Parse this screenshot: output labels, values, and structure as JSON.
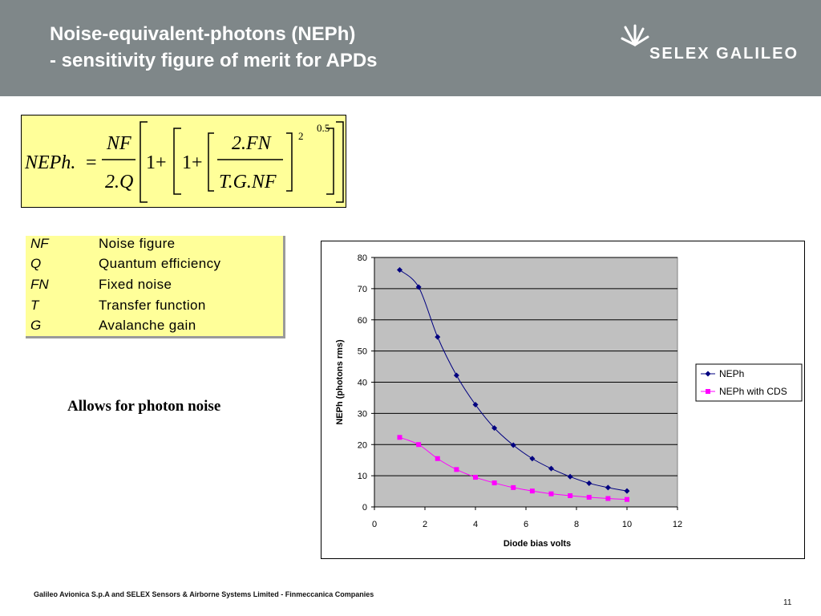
{
  "header": {
    "title_line1": "Noise-equivalent-photons (NEPh)",
    "title_line2": "- sensitivity figure of merit for APDs",
    "logo_text": "SELEX GALILEO",
    "background": "#7f8789"
  },
  "formula": {
    "lhs": "NEPh.",
    "eq": "=",
    "nf": "NF",
    "twoq": "2.Q",
    "one_a": "1+",
    "one_b": "1+",
    "twofn": "2.FN",
    "tgnf": "T.G.NF",
    "exp_inner": "2",
    "exp_outer": "0.5",
    "background": "#ffff99"
  },
  "definitions": [
    {
      "symbol": "NF",
      "text": "Noise figure"
    },
    {
      "symbol": "Q",
      "text": "Quantum efficiency"
    },
    {
      "symbol": "FN",
      "text": "Fixed noise"
    },
    {
      "symbol": "T",
      "text": "Transfer function"
    },
    {
      "symbol": "G",
      "text": "Avalanche gain"
    }
  ],
  "note": "Allows for photon noise",
  "chart_data": {
    "type": "line",
    "xlabel": "Diode bias volts",
    "ylabel": "NEPh (photons rms)",
    "xlim": [
      0,
      12
    ],
    "ylim": [
      0,
      80
    ],
    "xticks": [
      0,
      2,
      4,
      6,
      8,
      10,
      12
    ],
    "yticks": [
      0,
      10,
      20,
      30,
      40,
      50,
      60,
      70,
      80
    ],
    "grid": "horizontal",
    "plot_background": "#c0c0c0",
    "legend_position": "right",
    "series": [
      {
        "name": "NEPh",
        "color": "#000080",
        "marker": "diamond",
        "x": [
          1.0,
          1.75,
          2.5,
          3.25,
          4.0,
          4.75,
          5.5,
          6.25,
          7.0,
          7.75,
          8.5,
          9.25,
          10.0
        ],
        "y": [
          76,
          70.5,
          54.5,
          42.2,
          32.8,
          25.3,
          19.8,
          15.5,
          12.3,
          9.7,
          7.6,
          6.2,
          5.1
        ]
      },
      {
        "name": "NEPh with CDS",
        "color": "#ff00ff",
        "marker": "square",
        "x": [
          1.0,
          1.75,
          2.5,
          3.25,
          4.0,
          4.75,
          5.5,
          6.25,
          7.0,
          7.75,
          8.5,
          9.25,
          10.0
        ],
        "y": [
          22.3,
          20.0,
          15.5,
          12.0,
          9.5,
          7.7,
          6.2,
          5.1,
          4.2,
          3.6,
          3.1,
          2.7,
          2.4
        ]
      }
    ]
  },
  "footer": "Galileo Avionica S.p.A and SELEX Sensors & Airborne Systems Limited - Finmeccanica Companies",
  "page_number": "11"
}
